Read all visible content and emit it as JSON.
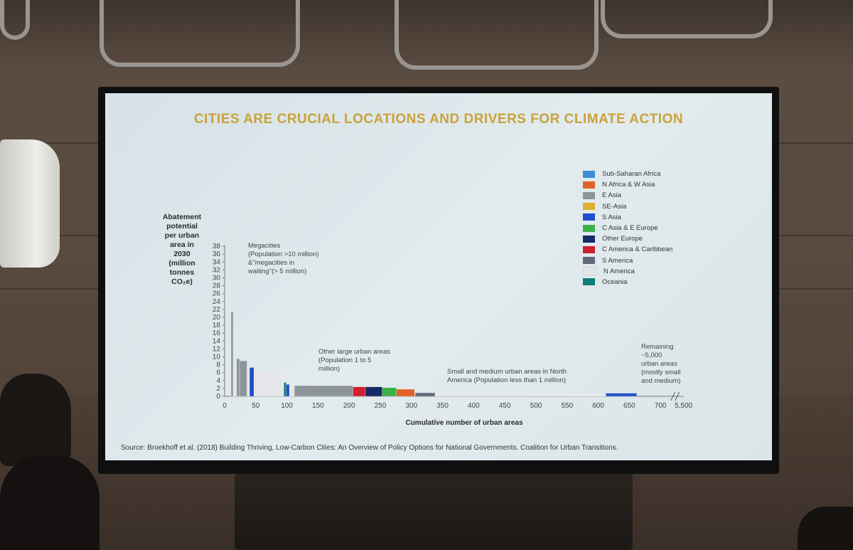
{
  "slide": {
    "title": "CITIES ARE CRUCIAL LOCATIONS AND DRIVERS FOR CLIMATE ACTION",
    "ylabel_lines": [
      "Abatement",
      "potential",
      "per urban",
      "area in",
      "2030",
      "(million",
      "tonnes",
      "CO₂e)"
    ],
    "xlabel": "Cumulative number of urban areas",
    "source": "Source: Broekhoff et al. (2018) Building Thriving, Low-Carbon Cities: An Overview of Policy Options for National Governments. Coalition for Urban Transitions.",
    "annotations": {
      "megacities": [
        "Megacities",
        "(Population >10 million)",
        "&\"megacities in",
        "waiting\"(> 5 million)"
      ],
      "other_large": [
        "Other large urban areas",
        "(Population 1 to 5",
        "million)"
      ],
      "small_medium": [
        "Small and medium urban areas in North",
        "America (Population less than 1 million)"
      ],
      "remaining": [
        "Remaining",
        "~5,000",
        "urban areas",
        "(mostly small",
        "and medium)"
      ]
    }
  },
  "chart_data": {
    "type": "bar",
    "ylim": [
      0,
      38
    ],
    "yticks": [
      0,
      2,
      4,
      6,
      8,
      10,
      12,
      14,
      16,
      18,
      20,
      22,
      24,
      26,
      28,
      30,
      32,
      34,
      36,
      38
    ],
    "xticks": [
      "0",
      "50",
      "100",
      "150",
      "200",
      "250",
      "300",
      "350",
      "400",
      "450",
      "500",
      "550",
      "600",
      "650",
      "700",
      "5,500"
    ],
    "legend": [
      {
        "name": "Sub-Saharan Africa",
        "color": "#3a8fd6"
      },
      {
        "name": "N Africa & W Asia",
        "color": "#e0622a"
      },
      {
        "name": "E Asia",
        "color": "#8e959a"
      },
      {
        "name": "SE-Asia",
        "color": "#e0b030"
      },
      {
        "name": "S Asia",
        "color": "#1f4fc9"
      },
      {
        "name": "C Asia & E Europe",
        "color": "#3bb14a"
      },
      {
        "name": "Other Europe",
        "color": "#152a66"
      },
      {
        "name": "C America & Caribbean",
        "color": "#cf2030"
      },
      {
        "name": "S America",
        "color": "#5f6b78"
      },
      {
        "name": "N America",
        "color": "#e4e6ea"
      },
      {
        "name": "Oceania",
        "color": "#0f7d7a"
      }
    ],
    "bars": [
      {
        "x0": 10,
        "x1": 14,
        "y": 21.5,
        "color": "#9aa0a5"
      },
      {
        "x0": 14,
        "x1": 19,
        "y": 6.2,
        "color": "#e4e6ea"
      },
      {
        "x0": 19,
        "x1": 24,
        "y": 9.5,
        "color": "#8e959a"
      },
      {
        "x0": 24,
        "x1": 36,
        "y": 9.0,
        "color": "#8e959a"
      },
      {
        "x0": 36,
        "x1": 40,
        "y": 7.5,
        "color": "#e4e6ea"
      },
      {
        "x0": 40,
        "x1": 47,
        "y": 7.3,
        "color": "#1f4fc9"
      },
      {
        "x0": 47,
        "x1": 94,
        "y": 5.9,
        "color": "#e4e6ea"
      },
      {
        "x0": 95,
        "x1": 99,
        "y": 3.5,
        "color": "#0f7d7a"
      },
      {
        "x0": 99,
        "x1": 104,
        "y": 3.0,
        "color": "#1f4fc9"
      },
      {
        "x0": 104,
        "x1": 112,
        "y": 2.7,
        "color": "#e4e6ea"
      },
      {
        "x0": 112,
        "x1": 206,
        "y": 2.7,
        "color": "#8e959a"
      },
      {
        "x0": 206,
        "x1": 226,
        "y": 2.4,
        "color": "#cf2030"
      },
      {
        "x0": 226,
        "x1": 253,
        "y": 2.4,
        "color": "#152a66"
      },
      {
        "x0": 253,
        "x1": 276,
        "y": 2.2,
        "color": "#3bb14a"
      },
      {
        "x0": 276,
        "x1": 305,
        "y": 1.8,
        "color": "#e0622a"
      },
      {
        "x0": 306,
        "x1": 338,
        "y": 0.9,
        "color": "#5f6b78"
      },
      {
        "x0": 338,
        "x1": 612,
        "y": 0.7,
        "color": "#e4e6ea"
      },
      {
        "x0": 612,
        "x1": 662,
        "y": 0.8,
        "color": "#1f4fc9"
      }
    ]
  }
}
